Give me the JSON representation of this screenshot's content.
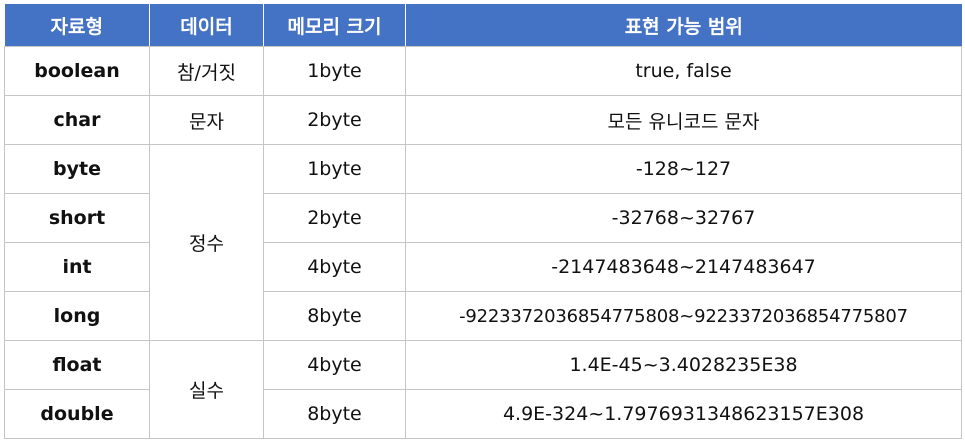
{
  "headers": [
    "자료형",
    "데이터",
    "메모리 크기",
    "표현 가능 범위"
  ],
  "rows": [
    {
      "type": "boolean",
      "data": "참/거짓",
      "size": "1byte",
      "range": "true, false"
    },
    {
      "type": "char",
      "data": "문자",
      "size": "2byte",
      "range": "모든 유니코드 문자"
    },
    {
      "type": "byte",
      "data": "정수",
      "size": "1byte",
      "range": "-128~127"
    },
    {
      "type": "short",
      "size": "2byte",
      "range": "-32768~32767"
    },
    {
      "type": "int",
      "size": "4byte",
      "range": "-2147483648~2147483647"
    },
    {
      "type": "long",
      "size": "8byte",
      "range": "-9223372036854775808~9223372036854775807"
    },
    {
      "type": "float",
      "data": "실수",
      "size": "4byte",
      "range": "1.4E-45~3.4028235E38"
    },
    {
      "type": "double",
      "size": "8byte",
      "range": "4.9E-324~1.7976931348623157E308"
    }
  ]
}
